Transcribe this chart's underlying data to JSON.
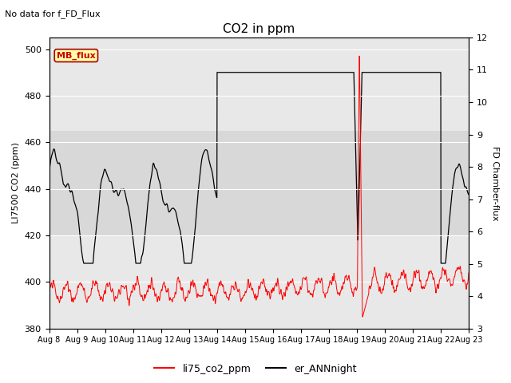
{
  "title": "CO2 in ppm",
  "subtitle": "No data for f_FD_Flux",
  "ylabel_left": "LI7500 CO2 (ppm)",
  "ylabel_right": "FD Chamber-flux",
  "ylim_left": [
    380,
    505
  ],
  "ylim_right": [
    3.0,
    12.0
  ],
  "yticks_left": [
    380,
    400,
    420,
    440,
    460,
    480,
    500
  ],
  "yticks_right": [
    3.0,
    4.0,
    5.0,
    6.0,
    7.0,
    8.0,
    9.0,
    10.0,
    11.0,
    12.0
  ],
  "xtick_labels": [
    "Aug 8",
    "Aug 9",
    "Aug 10",
    "Aug 11",
    "Aug 12",
    "Aug 13",
    "Aug 14",
    "Aug 15",
    "Aug 16",
    "Aug 17",
    "Aug 18",
    "Aug 19",
    "Aug 20",
    "Aug 21",
    "Aug 22",
    "Aug 23"
  ],
  "legend_entries": [
    "li75_co2_ppm",
    "er_ANNnight"
  ],
  "shaded_band": [
    420,
    465
  ],
  "axes_facecolor": "#e8e8e8",
  "grid_color": "#ffffff",
  "mb_flux_facecolor": "#ffffaa",
  "mb_flux_edgecolor": "#aa0000",
  "mb_flux_textcolor": "#cc0000"
}
